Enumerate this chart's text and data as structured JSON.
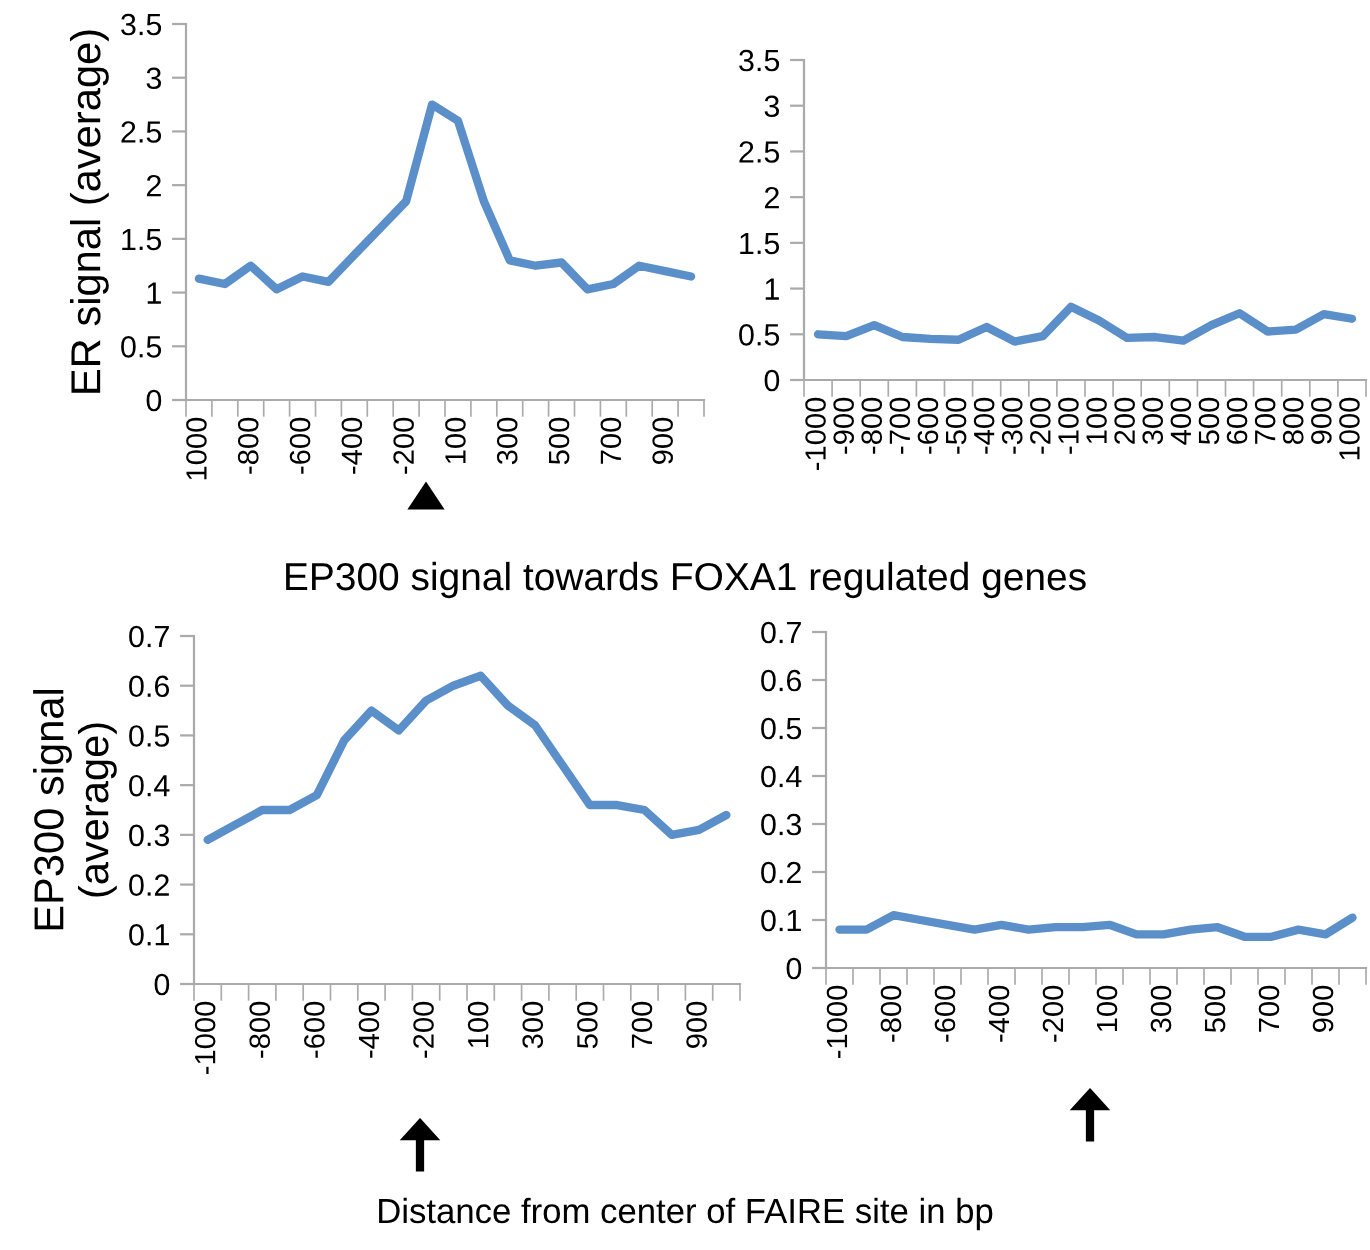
{
  "chart_data": [
    {
      "type": "line",
      "ylabel": "ER signal (average)",
      "categories": [
        "1000",
        null,
        "-800",
        null,
        "-600",
        null,
        "-400",
        null,
        "-200",
        null,
        "100",
        null,
        "300",
        null,
        "500",
        null,
        "700",
        null,
        "900",
        null
      ],
      "series": [
        {
          "color": "#5b8fc9",
          "values": [
            1.13,
            1.08,
            1.25,
            1.03,
            1.15,
            1.1,
            1.35,
            1.6,
            1.85,
            2.75,
            2.6,
            1.85,
            1.3,
            1.25,
            1.28,
            1.03,
            1.08,
            1.25,
            1.2,
            1.15
          ]
        }
      ],
      "ylim": [
        0,
        3.5
      ],
      "yticks": [
        0,
        0.5,
        1,
        1.5,
        2,
        2.5,
        3,
        3.5
      ],
      "grid": false,
      "marker": "none",
      "line_style": "solid"
    },
    {
      "type": "line",
      "categories": [
        "-1000",
        "-900",
        "-800",
        "-700",
        "-600",
        "-500",
        "-400",
        "-300",
        "-200",
        "-100",
        "100",
        "200",
        "300",
        "400",
        "500",
        "600",
        "700",
        "800",
        "900",
        "1000"
      ],
      "series": [
        {
          "color": "#5b8fc9",
          "values": [
            0.5,
            0.48,
            0.6,
            0.47,
            0.45,
            0.44,
            0.58,
            0.42,
            0.48,
            0.8,
            0.65,
            0.46,
            0.47,
            0.43,
            0.6,
            0.73,
            0.53,
            0.55,
            0.72,
            0.67
          ]
        }
      ],
      "ylim": [
        0,
        3.5
      ],
      "yticks": [
        0,
        0.5,
        1,
        1.5,
        2,
        2.5,
        3,
        3.5
      ],
      "grid": false,
      "marker": "none",
      "line_style": "solid"
    },
    {
      "type": "line",
      "title": "EP300 signal towards FOXA1 regulated genes",
      "ylabel": "EP300 signal\n(average)",
      "annotations": [
        "Distance from center of FAIRE site in bp"
      ],
      "categories": [
        "-1000",
        null,
        "-800",
        null,
        "-600",
        null,
        "-400",
        null,
        "-200",
        null,
        "100",
        null,
        "300",
        null,
        "500",
        null,
        "700",
        null,
        "900",
        null
      ],
      "series": [
        {
          "color": "#5b8fc9",
          "values": [
            0.29,
            0.32,
            0.35,
            0.35,
            0.38,
            0.49,
            0.55,
            0.51,
            0.57,
            0.6,
            0.62,
            0.56,
            0.52,
            0.44,
            0.36,
            0.36,
            0.35,
            0.3,
            0.31,
            0.34
          ]
        }
      ],
      "ylim": [
        0,
        0.7
      ],
      "yticks": [
        0,
        0.1,
        0.2,
        0.3,
        0.4,
        0.5,
        0.6,
        0.7
      ],
      "grid": false,
      "marker": "none",
      "line_style": "solid"
    },
    {
      "type": "line",
      "categories": [
        "-1000",
        null,
        "-800",
        null,
        "-600",
        null,
        "-400",
        null,
        "-200",
        null,
        "100",
        null,
        "300",
        null,
        "500",
        null,
        "700",
        null,
        "900",
        null
      ],
      "series": [
        {
          "color": "#5b8fc9",
          "values": [
            0.08,
            0.08,
            0.11,
            0.1,
            0.09,
            0.08,
            0.09,
            0.08,
            0.085,
            0.085,
            0.09,
            0.07,
            0.07,
            0.08,
            0.085,
            0.065,
            0.065,
            0.08,
            0.07,
            0.105
          ]
        }
      ],
      "ylim": [
        0,
        0.7
      ],
      "yticks": [
        0,
        0.1,
        0.2,
        0.3,
        0.4,
        0.5,
        0.6,
        0.7
      ],
      "grid": false,
      "marker": "none",
      "line_style": "solid"
    }
  ]
}
